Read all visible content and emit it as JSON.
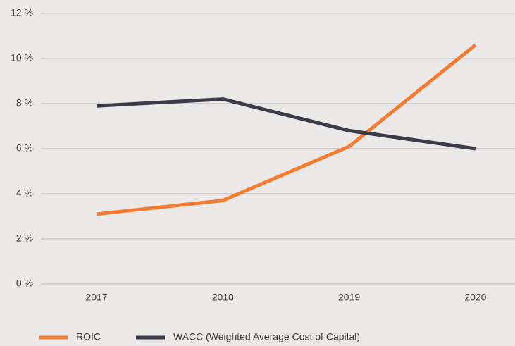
{
  "chart_data": {
    "type": "line",
    "categories": [
      "2017",
      "2018",
      "2019",
      "2020"
    ],
    "series": [
      {
        "name": "ROIC",
        "color": "#f47b2f",
        "values": [
          3.1,
          3.7,
          6.1,
          10.6
        ]
      },
      {
        "name": "WACC (Weighted Average Cost of Capital)",
        "color": "#3b3c48",
        "values": [
          7.9,
          8.2,
          6.8,
          6.0
        ]
      }
    ],
    "ylim": [
      0,
      12
    ],
    "yticks": [
      {
        "value": 0,
        "label": "0 %"
      },
      {
        "value": 2,
        "label": "2 %"
      },
      {
        "value": 4,
        "label": "4 %"
      },
      {
        "value": 6,
        "label": "6 %"
      },
      {
        "value": 8,
        "label": "8 %"
      },
      {
        "value": 10,
        "label": "10 %"
      },
      {
        "value": 12,
        "label": "12 %"
      }
    ],
    "grid": true,
    "legend": "bottom-left"
  }
}
